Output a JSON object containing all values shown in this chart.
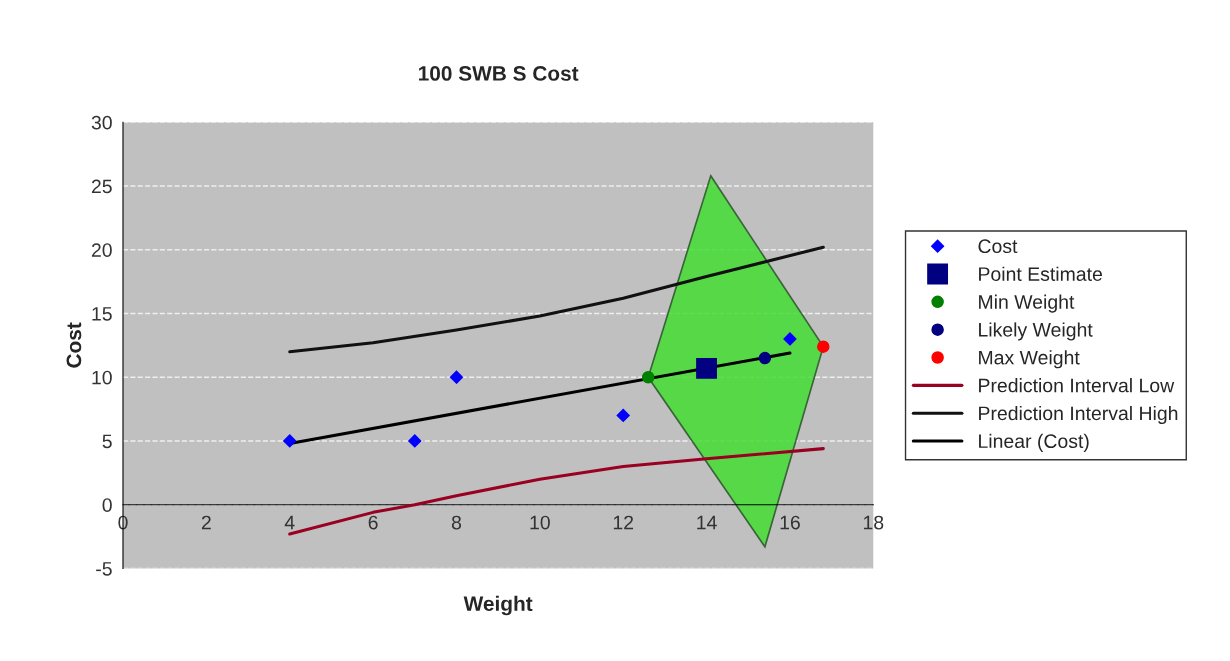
{
  "chart_data": {
    "type": "scatter",
    "title": "100 SWB S Cost",
    "xlabel": "Weight",
    "ylabel": "Cost",
    "xlim": [
      0,
      18
    ],
    "xticks": [
      0,
      2,
      4,
      6,
      8,
      10,
      12,
      14,
      16,
      18
    ],
    "ylim": [
      -5,
      30
    ],
    "yticks": [
      -5,
      0,
      5,
      10,
      15,
      20,
      25,
      30
    ],
    "grid": "y",
    "legend": "right",
    "series": [
      {
        "type": "area",
        "color": "#44dd33",
        "x": [
          14.1,
          16.8,
          15.4,
          12.6
        ],
        "values": [
          25.8,
          12.4,
          -3.3,
          10.0
        ]
      },
      {
        "type": "line",
        "name": "Prediction Interval Low",
        "color": "#990022",
        "marker": "none",
        "x": [
          4,
          6,
          7,
          8,
          10,
          12,
          14,
          16.8
        ],
        "values": [
          -2.3,
          -0.6,
          0.0,
          0.7,
          2.0,
          3.0,
          3.6,
          4.4
        ]
      },
      {
        "type": "line",
        "name": "Prediction Interval High",
        "color": "#111111",
        "marker": "none",
        "x": [
          4,
          6,
          8,
          10,
          12,
          14,
          16.8
        ],
        "values": [
          12.0,
          12.7,
          13.7,
          14.8,
          16.2,
          17.9,
          20.2
        ]
      },
      {
        "type": "line",
        "name": "Linear (Cost)",
        "color": "#000000",
        "marker": "none",
        "x": [
          4,
          16
        ],
        "values": [
          4.8,
          11.9
        ]
      },
      {
        "name": "Cost",
        "color": "#0000ff",
        "marker": "diamond",
        "x": [
          4,
          7,
          8,
          12,
          16
        ],
        "values": [
          5,
          5,
          10,
          7,
          13
        ]
      },
      {
        "name": "Point Estimate",
        "color": "#000080",
        "marker": "square",
        "x": [
          14
        ],
        "values": [
          10.7
        ]
      },
      {
        "name": "Min Weight",
        "color": "#008000",
        "marker": "circle",
        "x": [
          12.6
        ],
        "values": [
          10.0
        ]
      },
      {
        "name": "Likely Weight",
        "color": "#000080",
        "marker": "circle",
        "x": [
          15.4
        ],
        "values": [
          11.5
        ]
      },
      {
        "name": "Max Weight",
        "color": "#ff0000",
        "marker": "circle",
        "x": [
          16.8
        ],
        "values": [
          12.4
        ]
      }
    ]
  }
}
